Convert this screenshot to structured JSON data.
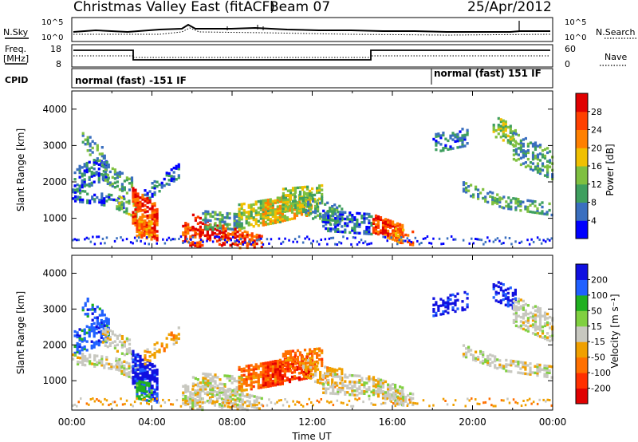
{
  "header": {
    "title": "Christmas Valley East (fitACF)",
    "beam": "Beam 07",
    "date": "25/Apr/2012"
  },
  "noise_panel": {
    "left_label": "N.Sky",
    "right_label": "N.Search",
    "ticks": [
      "10^5",
      "10^0"
    ]
  },
  "freq_panel": {
    "left_label_1": "Freq.",
    "left_label_2": "[MHz]",
    "left_ticks": [
      "18",
      "8"
    ],
    "right_label": "Nave",
    "right_ticks": [
      "60",
      "0"
    ]
  },
  "cpid_panel": {
    "label": "CPID",
    "segments": [
      "normal (fast) -151 IF",
      "normal (fast) 151 IF"
    ]
  },
  "colors": {
    "power": [
      "#0000ff",
      "#3a6fbf",
      "#3f9f5f",
      "#7fc040",
      "#f0c000",
      "#ff8000",
      "#ff4000",
      "#e00000"
    ],
    "velocity": [
      "#1010e0",
      "#2060ff",
      "#20b020",
      "#80d040",
      "#c8c8c0",
      "#f0a000",
      "#ff7000",
      "#ff3000",
      "#e00000"
    ]
  },
  "chart_data": [
    {
      "type": "heatmap",
      "title": "",
      "xlabel": "",
      "ylabel": "Slant Range [km]",
      "ylim": [
        180,
        4500
      ],
      "yticks": [
        1000,
        2000,
        3000,
        4000
      ],
      "ytick_labels": [
        "1000",
        "2000",
        "3000",
        "4000"
      ],
      "colorbar": {
        "label": "Power [dB]",
        "range": [
          0,
          32
        ],
        "ticks": [
          "4",
          "8",
          "12",
          "16",
          "20",
          "24",
          "28"
        ]
      }
    },
    {
      "type": "heatmap",
      "title": "",
      "xlabel": "Time UT",
      "ylabel": "Slant Range [km]",
      "ylim": [
        180,
        4500
      ],
      "xlim": [
        "00:00",
        "24:00"
      ],
      "xticks": [
        "00:00",
        "04:00",
        "08:00",
        "12:00",
        "16:00",
        "20:00",
        "00:00"
      ],
      "yticks": [
        1000,
        2000,
        3000,
        4000
      ],
      "ytick_labels": [
        "1000",
        "2000",
        "3000",
        "4000"
      ],
      "colorbar": {
        "label": "Velocity [m s⁻¹]",
        "ticks": [
          "200",
          "100",
          "50",
          "15",
          "-15",
          "-50",
          "-100",
          "-200"
        ]
      }
    }
  ]
}
